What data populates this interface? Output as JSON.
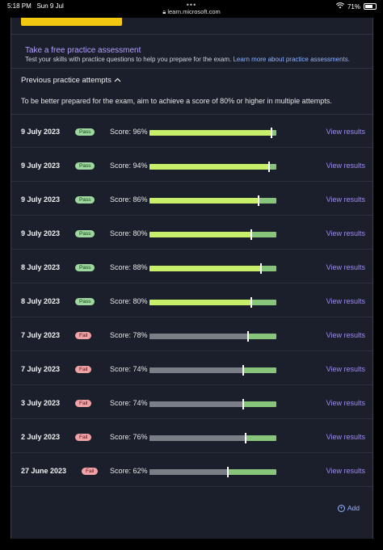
{
  "status_bar": {
    "time": "5:18 PM",
    "date": "Sun 9 Jul",
    "url": "learn.microsoft.com",
    "battery": "71%",
    "battery_level": 0.71
  },
  "free_assessment": {
    "title": "Take a free practice assessment",
    "description": "Test your skills with practice questions to help you prepare for the exam.",
    "link": "Learn more about practice assessments."
  },
  "previous": {
    "header": "Previous practice attempts",
    "intro": "To be better prepared for the exam, aim to achieve a score of 80% or higher in multiple attempts."
  },
  "attempts": [
    {
      "date": "9 July 2023",
      "result": "Pass",
      "score_text": "Score: 96%",
      "score": 96,
      "action": "View results"
    },
    {
      "date": "9 July 2023",
      "result": "Pass",
      "score_text": "Score: 94%",
      "score": 94,
      "action": "View results"
    },
    {
      "date": "9 July 2023",
      "result": "Pass",
      "score_text": "Score: 86%",
      "score": 86,
      "action": "View results"
    },
    {
      "date": "9 July 2023",
      "result": "Pass",
      "score_text": "Score: 80%",
      "score": 80,
      "action": "View results"
    },
    {
      "date": "8 July 2023",
      "result": "Pass",
      "score_text": "Score: 88%",
      "score": 88,
      "action": "View results"
    },
    {
      "date": "8 July 2023",
      "result": "Pass",
      "score_text": "Score: 80%",
      "score": 80,
      "action": "View results"
    },
    {
      "date": "7 July 2023",
      "result": "Fail",
      "score_text": "Score: 78%",
      "score": 78,
      "action": "View results"
    },
    {
      "date": "7 July 2023",
      "result": "Fail",
      "score_text": "Score: 74%",
      "score": 74,
      "action": "View results"
    },
    {
      "date": "3 July 2023",
      "result": "Fail",
      "score_text": "Score: 74%",
      "score": 74,
      "action": "View results"
    },
    {
      "date": "2 July 2023",
      "result": "Fail",
      "score_text": "Score: 76%",
      "score": 76,
      "action": "View results"
    },
    {
      "date": "27 June 2023",
      "result": "Fail",
      "score_text": "Score: 62%",
      "score": 62,
      "action": "View results"
    }
  ],
  "add_label": "Add",
  "colors": {
    "panel_bg": "#1a1f2b",
    "accent_yellow": "#f2c811",
    "pass_badge": "#9fd89f",
    "fail_badge": "#f0a3a6",
    "bar_target": "#86c57a",
    "bar_pass": "#c7ef6a",
    "bar_fail": "#7a7e86",
    "link": "#9e8cf0"
  }
}
